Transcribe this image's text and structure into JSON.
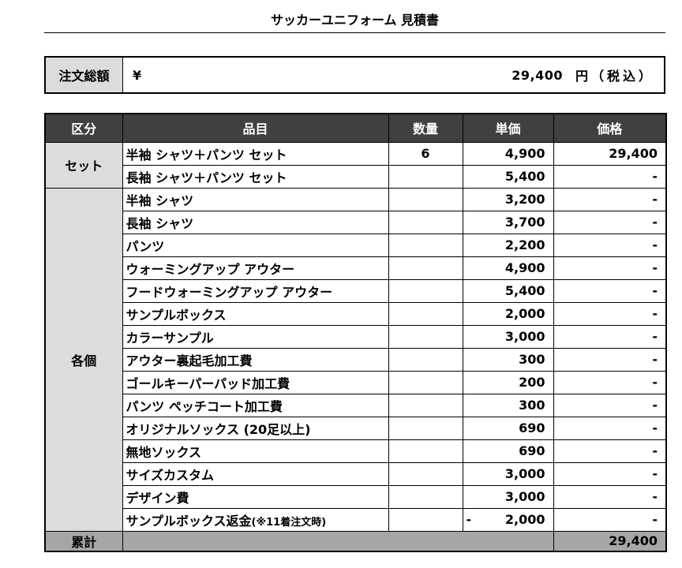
{
  "title": "サッカーユニフォーム 見積書",
  "order_total": {
    "label": "注文総額",
    "currency": "¥",
    "amount": "29,400",
    "unit": "円（税込）"
  },
  "table": {
    "headers": {
      "section": "区分",
      "item": "品目",
      "qty": "数量",
      "unit_price": "単価",
      "price": "価格"
    },
    "sections": [
      {
        "label": "セット",
        "rows": [
          {
            "item": "半袖 シャツ＋パンツ セット",
            "qty": "6",
            "unit_price": "4,900",
            "price": "29,400"
          },
          {
            "item": "長袖 シャツ＋パンツ セット",
            "qty": "",
            "unit_price": "5,400",
            "price": "-"
          }
        ]
      },
      {
        "label": "各個",
        "rows": [
          {
            "item": "半袖 シャツ",
            "qty": "",
            "unit_price": "3,200",
            "price": "-"
          },
          {
            "item": "長袖 シャツ",
            "qty": "",
            "unit_price": "3,700",
            "price": "-"
          },
          {
            "item": "パンツ",
            "qty": "",
            "unit_price": "2,200",
            "price": "-"
          },
          {
            "item": "ウォーミングアップ  アウター",
            "qty": "",
            "unit_price": "4,900",
            "price": "-"
          },
          {
            "item": "フードウォーミングアップ アウター",
            "qty": "",
            "unit_price": "5,400",
            "price": "-"
          },
          {
            "item": "サンプルボックス",
            "qty": "",
            "unit_price": "2,000",
            "price": "-"
          },
          {
            "item": "カラーサンプル",
            "qty": "",
            "unit_price": "3,000",
            "price": "-"
          },
          {
            "item": "アウター裏起毛加工費",
            "qty": "",
            "unit_price": "300",
            "price": "-"
          },
          {
            "item": "ゴールキーパーパッド加工費",
            "qty": "",
            "unit_price": "200",
            "price": "-"
          },
          {
            "item": "パンツ ペッチコート加工費",
            "qty": "",
            "unit_price": "300",
            "price": "-"
          },
          {
            "item": "オリジナルソックス (20足以上)",
            "qty": "",
            "unit_price": "690",
            "price": "-"
          },
          {
            "item": "無地ソックス",
            "qty": "",
            "unit_price": "690",
            "price": "-"
          },
          {
            "item": "サイズカスタム",
            "qty": "",
            "unit_price": "3,000",
            "price": "-"
          },
          {
            "item": "デザイン費",
            "qty": "",
            "unit_price": "3,000",
            "price": "-"
          },
          {
            "item": "サンプルボックス返金",
            "item_note": "(※11着注文時)",
            "qty": "",
            "unit_price_sign": "-",
            "unit_price": "2,000",
            "price": "-"
          }
        ]
      }
    ],
    "summary": {
      "label": "累計",
      "price": "29,400"
    }
  }
}
